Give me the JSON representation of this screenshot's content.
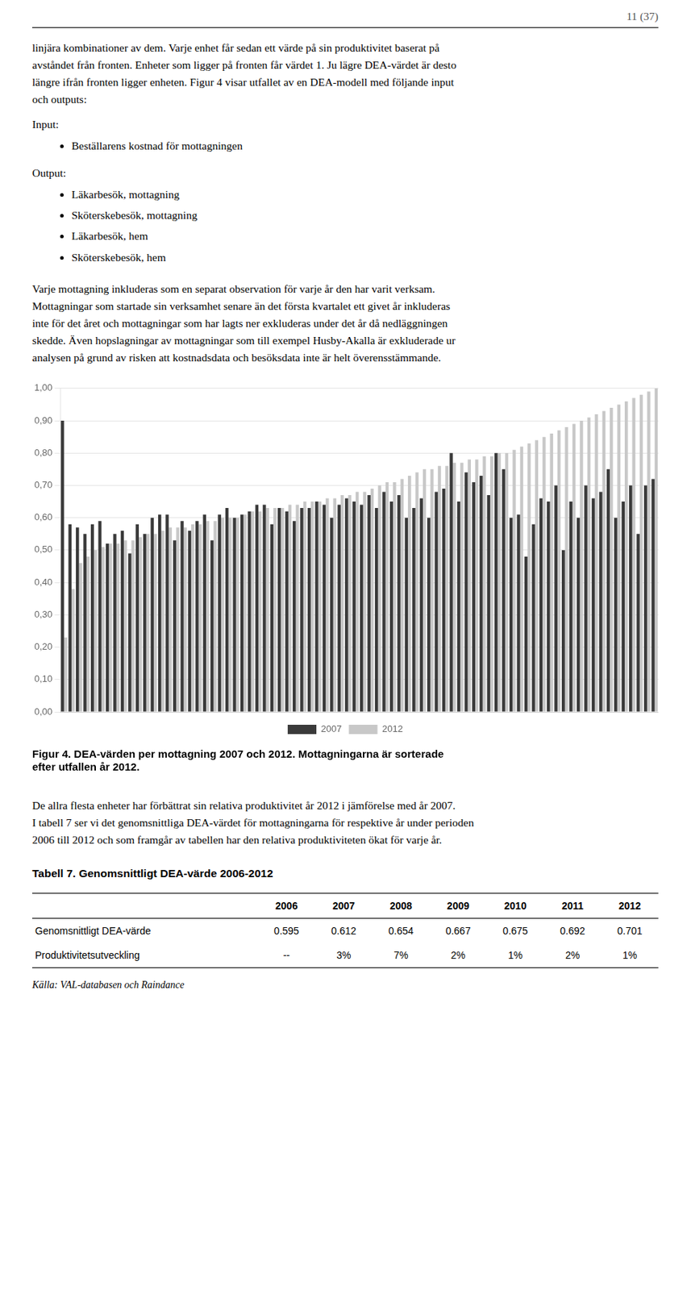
{
  "document": {
    "header": "11 (37)",
    "intro_lines": [
      "linjära kombinationer av dem. Varje enhet får sedan ett värde på sin produktivitet baserat på",
      "avståndet från fronten. Enheter som ligger på fronten får värdet 1. Ju lägre DEA-värdet är desto",
      "längre ifrån fronten ligger enheten. Figur 4 visar utfallet av en DEA-modell med följande input",
      "och outputs:"
    ],
    "input_label": "Input:",
    "input_bullets": [
      "Beställarens kostnad för mottagningen"
    ],
    "output_label": "Output:",
    "output_bullets": [
      "Läkarbesök, mottagning",
      "Sköterskebesök, mottagning",
      "Läkarbesök, hem",
      "Sköterskebesök, hem"
    ],
    "body_lines": [
      "Varje mottagning inkluderas som en separat observation för varje år den har varit verksam.",
      "Mottagningar som startade sin verksamhet senare än det första kvartalet ett givet år inkluderas",
      "inte för det året och mottagningar som har lagts ner exkluderas under det år då nedläggningen",
      "skedde. Även hopslagningar av mottagningar som till exempel Husby-Akalla är exkluderade ur",
      "analysen på grund av risken att kostnadsdata och besöksdata inte är helt överensstämmande."
    ],
    "body2_lines": [
      "De allra flesta enheter har förbättrat sin relativa produktivitet år 2012 i jämförelse med år 2007.",
      "I tabell 7 ser vi det genomsnittliga DEA-värdet för mottagningarna för respektive år under perioden",
      "2006 till 2012 och som framgår av tabellen har den relativa produktiviteten ökat för varje år."
    ],
    "table": {
      "title": "Tabell 7. Genomsnittligt DEA-värde 2006-2012",
      "columns": [
        null,
        "2006",
        "2007",
        "2008",
        "2009",
        "2010",
        "2011",
        "2012"
      ],
      "rows": [
        [
          "Genomsnittligt DEA-värde",
          "0.595",
          "0.612",
          "0.654",
          "0.667",
          "0.675",
          "0.692",
          "0.701"
        ],
        [
          "Produktivitetsutveckling",
          "--",
          "3%",
          "7%",
          "2%",
          "1%",
          "2%",
          "1%"
        ]
      ],
      "source": "Källa: VAL-databasen och Raindance"
    }
  },
  "chart_data": {
    "type": "bar",
    "title": [
      "Figur 4. DEA-värden per mottagning 2007 och 2012. Mottagningarna är sorterade",
      "efter utfallen år 2012."
    ],
    "categories": [
      null,
      null,
      null,
      null,
      null,
      null,
      null,
      null,
      null,
      null,
      null,
      null,
      null,
      null,
      null,
      null,
      null,
      null,
      null,
      null,
      null,
      null,
      null,
      null,
      null,
      null,
      null,
      null,
      null,
      null,
      null,
      null,
      null,
      null,
      null,
      null,
      null,
      null,
      null,
      null,
      null,
      null,
      null,
      null,
      null,
      null,
      null,
      null,
      null,
      null,
      null,
      null,
      null,
      null,
      null,
      null,
      null,
      null,
      null,
      null,
      null,
      null,
      null,
      null,
      null,
      null,
      null,
      null,
      null,
      null,
      null,
      null,
      null,
      null,
      null,
      null,
      null,
      null,
      null,
      null
    ],
    "series": [
      {
        "name": "2007",
        "color": "#3a3a3a",
        "values": [
          0.9,
          0.58,
          0.57,
          0.55,
          0.58,
          0.59,
          0.52,
          0.55,
          0.56,
          0.49,
          0.58,
          0.55,
          0.6,
          0.61,
          0.61,
          0.53,
          0.59,
          0.56,
          0.59,
          0.61,
          0.53,
          0.61,
          0.63,
          0.6,
          0.61,
          0.62,
          0.64,
          0.64,
          0.58,
          0.63,
          0.62,
          0.59,
          0.63,
          0.63,
          0.65,
          0.64,
          0.6,
          0.64,
          0.66,
          0.65,
          0.64,
          0.67,
          0.63,
          0.68,
          0.65,
          0.67,
          0.6,
          0.63,
          0.66,
          0.6,
          0.68,
          0.69,
          0.8,
          0.65,
          0.74,
          0.71,
          0.73,
          0.67,
          0.8,
          0.75,
          0.6,
          0.61,
          0.48,
          0.58,
          0.66,
          0.65,
          0.7,
          0.5,
          0.65,
          0.6,
          0.7,
          0.66,
          0.68,
          0.75,
          0.6,
          0.65,
          0.7,
          0.55,
          0.7,
          0.72
        ]
      },
      {
        "name": "2012",
        "color": "#c8c8c8",
        "values": [
          0.23,
          0.38,
          0.46,
          0.48,
          0.5,
          0.51,
          0.52,
          0.52,
          0.53,
          0.53,
          0.54,
          0.55,
          0.55,
          0.56,
          0.57,
          0.57,
          0.57,
          0.58,
          0.58,
          0.59,
          0.59,
          0.6,
          0.6,
          0.6,
          0.61,
          0.62,
          0.62,
          0.63,
          0.63,
          0.63,
          0.64,
          0.64,
          0.65,
          0.65,
          0.65,
          0.66,
          0.66,
          0.67,
          0.67,
          0.68,
          0.68,
          0.69,
          0.7,
          0.71,
          0.71,
          0.72,
          0.73,
          0.74,
          0.75,
          0.75,
          0.76,
          0.76,
          0.77,
          0.77,
          0.78,
          0.78,
          0.79,
          0.79,
          0.8,
          0.8,
          0.81,
          0.82,
          0.83,
          0.84,
          0.85,
          0.86,
          0.87,
          0.88,
          0.89,
          0.9,
          0.91,
          0.92,
          0.93,
          0.94,
          0.95,
          0.96,
          0.97,
          0.98,
          0.99,
          1.0
        ]
      }
    ],
    "ylim": [
      0,
      1.0
    ],
    "yticks": [
      {
        "value": 0.0,
        "label": "0,00"
      },
      {
        "value": 0.1,
        "label": "0,10"
      },
      {
        "value": 0.2,
        "label": "0,20"
      },
      {
        "value": 0.3,
        "label": "0,30"
      },
      {
        "value": 0.4,
        "label": "0,40"
      },
      {
        "value": 0.5,
        "label": "0,50"
      },
      {
        "value": 0.6,
        "label": "0,60"
      },
      {
        "value": 0.7,
        "label": "0,70"
      },
      {
        "value": 0.8,
        "label": "0,80"
      },
      {
        "value": 0.9,
        "label": "0,90"
      },
      {
        "value": 1.0,
        "label": "1,00"
      }
    ],
    "grid": true,
    "legend": "bottom",
    "tick_labels": "y"
  }
}
